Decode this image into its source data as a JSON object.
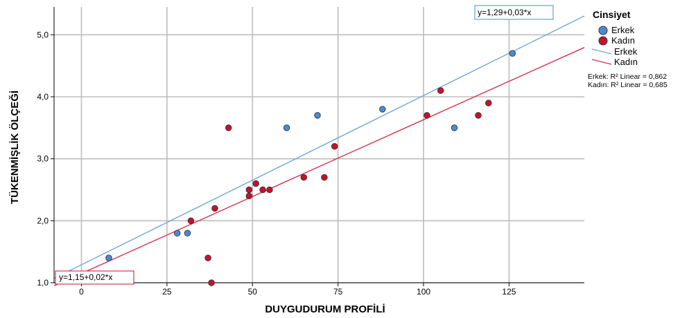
{
  "chart_data": {
    "type": "scatter",
    "xlabel": "DUYGUDURUM PROFİLİ",
    "ylabel": "TÜKENMİŞLİK ÖLÇEĞİ",
    "xlim": [
      -8,
      147
    ],
    "ylim": [
      1.0,
      5.45
    ],
    "xticks": [
      0,
      25,
      50,
      75,
      100,
      125
    ],
    "xtick_labels": [
      "0",
      "25",
      "50",
      "75",
      "100",
      "125"
    ],
    "yticks": [
      1.0,
      2.0,
      3.0,
      4.0,
      5.0
    ],
    "ytick_labels": [
      "1,0",
      "2,0",
      "3,0",
      "4,0",
      "5,0"
    ],
    "grid": true,
    "legend_position": "right",
    "legend": {
      "title": "Cinsiyet",
      "items": [
        "Erkek",
        "Kadın",
        "Erkek",
        "Kadın"
      ]
    },
    "series": [
      {
        "name": "Erkek",
        "color": "#4a8ad4",
        "line_color": "#6fa6e2",
        "points": [
          [
            8,
            1.4
          ],
          [
            28,
            1.8
          ],
          [
            31,
            1.8
          ],
          [
            60,
            3.5
          ],
          [
            69,
            3.7
          ],
          [
            88,
            3.8
          ],
          [
            109,
            3.5
          ],
          [
            126,
            4.7
          ]
        ],
        "fit": {
          "intercept": 1.29,
          "slope": 0.0273,
          "equation": "y=1,29+0,03*x",
          "r2_text": "Erkek: R² Linear = 0,862"
        }
      },
      {
        "name": "Kadın",
        "color": "#c8102e",
        "line_color": "#d2304e",
        "points": [
          [
            32,
            2.0
          ],
          [
            37,
            1.4
          ],
          [
            38,
            1.0
          ],
          [
            39,
            2.2
          ],
          [
            43,
            3.5
          ],
          [
            49,
            2.5
          ],
          [
            49,
            2.4
          ],
          [
            51,
            2.6
          ],
          [
            53,
            2.5
          ],
          [
            55,
            2.5
          ],
          [
            65,
            2.7
          ],
          [
            71,
            2.7
          ],
          [
            74,
            3.2
          ],
          [
            101,
            3.7
          ],
          [
            105,
            4.1
          ],
          [
            116,
            3.7
          ],
          [
            119,
            3.9
          ]
        ],
        "fit": {
          "intercept": 1.15,
          "slope": 0.0248,
          "equation": "y=1,15+0,02*x",
          "r2_text": "Kadın: R² Linear = 0,685"
        }
      }
    ]
  }
}
